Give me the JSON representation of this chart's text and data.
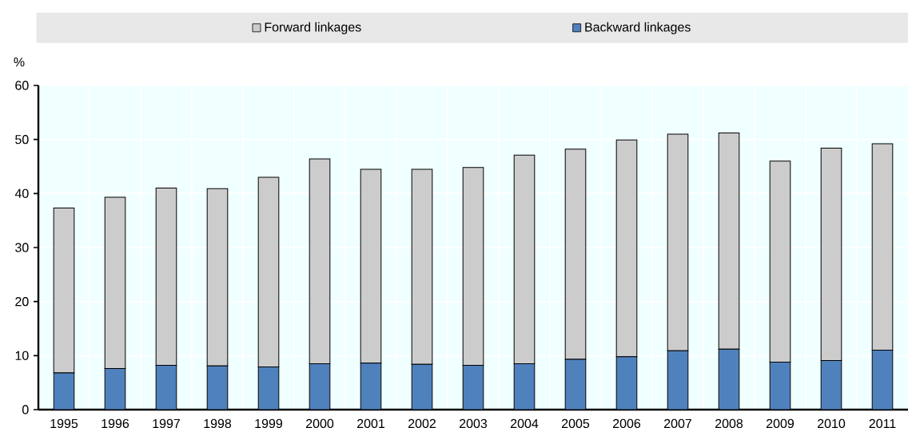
{
  "chart_data": {
    "type": "bar",
    "stacked": true,
    "ylabel": "%",
    "categories": [
      "1995",
      "1996",
      "1997",
      "1998",
      "1999",
      "2000",
      "2001",
      "2002",
      "2003",
      "2004",
      "2005",
      "2006",
      "2007",
      "2008",
      "2009",
      "2010",
      "2011"
    ],
    "series": [
      {
        "name": "Backward linkages",
        "color": "#4f81bd",
        "values": [
          6.8,
          7.6,
          8.2,
          8.1,
          7.9,
          8.5,
          8.6,
          8.4,
          8.2,
          8.5,
          9.3,
          9.8,
          10.9,
          11.2,
          8.8,
          9.1,
          11.0
        ]
      },
      {
        "name": "Forward linkages",
        "color": "#cccccc",
        "values": [
          30.5,
          31.7,
          32.8,
          32.8,
          35.1,
          37.9,
          35.9,
          36.1,
          36.6,
          38.6,
          38.9,
          40.1,
          40.1,
          40.0,
          37.2,
          39.3,
          38.2
        ]
      }
    ],
    "ylim": [
      0,
      60
    ],
    "yticks": [
      0,
      10,
      20,
      30,
      40,
      50,
      60
    ],
    "grid": true,
    "legend": "top"
  }
}
